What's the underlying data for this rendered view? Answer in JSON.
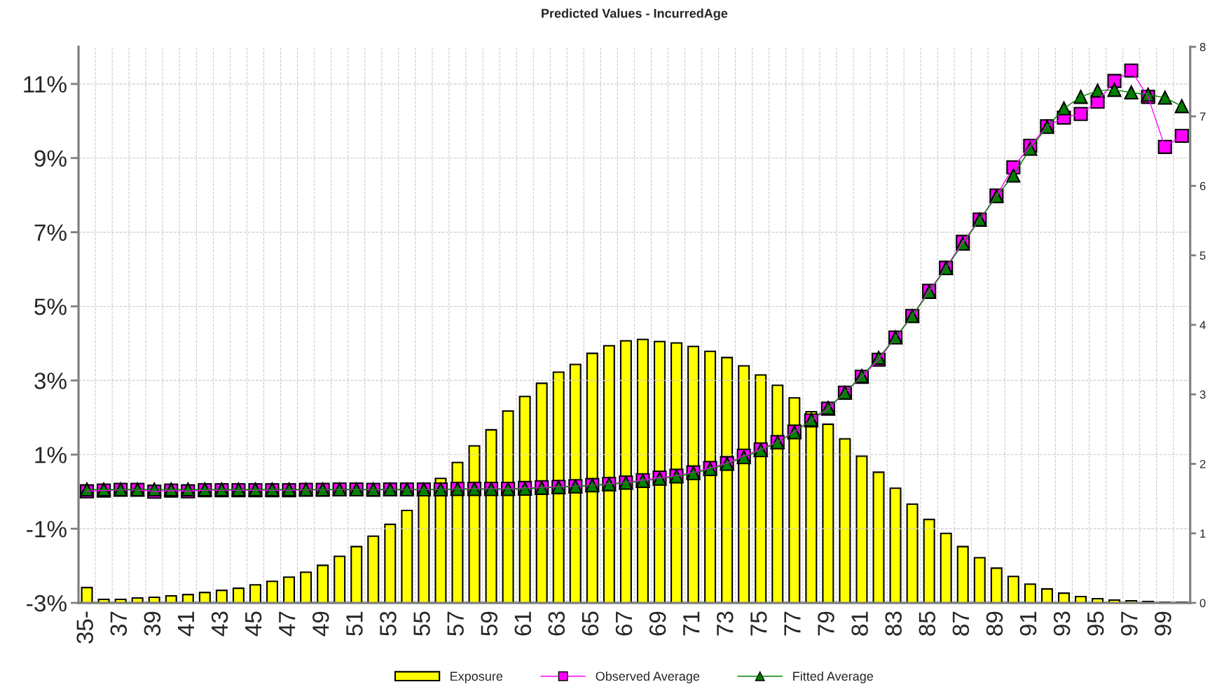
{
  "chart_data": {
    "type": "bar",
    "title": "Predicted Values - IncurredAge",
    "categories": [
      "35-",
      null,
      "37",
      null,
      "39",
      null,
      "41",
      null,
      "43",
      null,
      "45",
      null,
      "47",
      null,
      "49",
      null,
      "51",
      null,
      "53",
      null,
      "55",
      null,
      "57",
      null,
      "59",
      null,
      "61",
      null,
      "63",
      null,
      "65",
      null,
      "67",
      null,
      "69",
      null,
      "71",
      null,
      "73",
      null,
      "75",
      null,
      "77",
      null,
      "79",
      null,
      "81",
      null,
      "83",
      null,
      "85",
      null,
      "87",
      null,
      "89",
      null,
      "91",
      null,
      "93",
      null,
      "95",
      null,
      "97",
      null,
      "99",
      null
    ],
    "series": [
      {
        "name": "Exposure",
        "axis": "y2",
        "color": "#ffff00",
        "values": [
          0.22,
          0.05,
          0.05,
          0.07,
          0.08,
          0.1,
          0.12,
          0.15,
          0.18,
          0.21,
          0.26,
          0.31,
          0.37,
          0.44,
          0.54,
          0.67,
          0.81,
          0.96,
          1.13,
          1.33,
          1.56,
          1.79,
          2.02,
          2.26,
          2.49,
          2.76,
          2.97,
          3.16,
          3.32,
          3.43,
          3.59,
          3.7,
          3.77,
          3.79,
          3.76,
          3.74,
          3.69,
          3.62,
          3.53,
          3.41,
          3.28,
          3.13,
          2.95,
          2.75,
          2.57,
          2.36,
          2.11,
          1.88,
          1.65,
          1.42,
          1.2,
          1.0,
          0.81,
          0.65,
          0.5,
          0.38,
          0.27,
          0.2,
          0.14,
          0.09,
          0.06,
          0.04,
          0.03,
          0.02,
          0.01,
          0.01
        ]
      },
      {
        "name": "Observed Average",
        "type": "line",
        "axis": "y",
        "marker": "square",
        "color": "#ff00ff",
        "values": [
          0.01,
          0.03,
          0.05,
          0.05,
          0.0,
          0.03,
          0.01,
          0.04,
          0.04,
          0.04,
          0.04,
          0.04,
          0.04,
          0.05,
          0.05,
          0.06,
          0.06,
          0.05,
          0.06,
          0.06,
          0.06,
          0.06,
          0.08,
          0.08,
          0.08,
          0.08,
          0.1,
          0.12,
          0.13,
          0.15,
          0.18,
          0.21,
          0.25,
          0.31,
          0.38,
          0.43,
          0.52,
          0.64,
          0.77,
          0.97,
          1.14,
          1.34,
          1.62,
          1.92,
          2.24,
          2.67,
          3.1,
          3.56,
          4.16,
          4.74,
          5.42,
          6.04,
          6.74,
          7.34,
          7.99,
          8.75,
          9.33,
          9.86,
          10.09,
          10.19,
          10.52,
          11.08,
          11.36,
          10.65,
          9.3,
          9.6
        ]
      },
      {
        "name": "Fitted Average",
        "type": "line",
        "axis": "y",
        "marker": "triangle",
        "color": "#008000",
        "values": [
          0.06,
          0.06,
          0.06,
          0.06,
          0.06,
          0.06,
          0.06,
          0.06,
          0.06,
          0.06,
          0.06,
          0.06,
          0.06,
          0.06,
          0.06,
          0.06,
          0.06,
          0.06,
          0.06,
          0.06,
          0.06,
          0.06,
          0.07,
          0.07,
          0.07,
          0.07,
          0.08,
          0.1,
          0.12,
          0.14,
          0.17,
          0.2,
          0.24,
          0.29,
          0.35,
          0.41,
          0.5,
          0.61,
          0.75,
          0.93,
          1.12,
          1.33,
          1.6,
          1.94,
          2.26,
          2.67,
          3.12,
          3.61,
          4.16,
          4.74,
          5.39,
          6.03,
          6.69,
          7.34,
          7.97,
          8.53,
          9.25,
          9.84,
          10.34,
          10.65,
          10.82,
          10.84,
          10.77,
          10.71,
          10.63,
          10.4
        ]
      }
    ],
    "ylim": [
      -3,
      12
    ],
    "yticks": [
      {
        "value": -3,
        "label": "-3%"
      },
      {
        "value": -1,
        "label": "-1%"
      },
      {
        "value": 1,
        "label": "1%"
      },
      {
        "value": 3,
        "label": "3%"
      },
      {
        "value": 5,
        "label": "5%"
      },
      {
        "value": 7,
        "label": "7%"
      },
      {
        "value": 9,
        "label": "9%"
      },
      {
        "value": 11,
        "label": "11%"
      }
    ],
    "y2lim": [
      0,
      8
    ],
    "y2ticks": [
      0,
      1,
      2,
      3,
      4,
      5,
      6,
      7,
      8
    ],
    "grid": true,
    "legend": "bottom"
  }
}
